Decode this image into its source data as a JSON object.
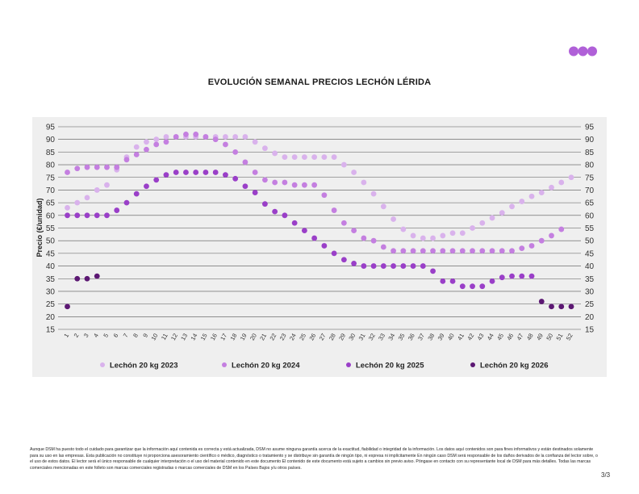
{
  "header": {
    "logo_colors": [
      "#b060d8",
      "#b060d8",
      "#b060d8"
    ]
  },
  "chart_data": {
    "type": "scatter",
    "title": "EVOLUCIÓN SEMANAL PRECIOS LECHÓN LÉRIDA",
    "xlabel": "",
    "ylabel": "Precio (€/unidad)",
    "ylim": [
      15,
      95
    ],
    "yticks": [
      15,
      20,
      25,
      30,
      35,
      40,
      45,
      50,
      55,
      60,
      65,
      70,
      75,
      80,
      85,
      90,
      95
    ],
    "x": [
      1,
      2,
      3,
      4,
      5,
      6,
      7,
      8,
      9,
      10,
      11,
      12,
      13,
      14,
      15,
      16,
      17,
      18,
      19,
      20,
      21,
      22,
      23,
      24,
      25,
      26,
      27,
      28,
      29,
      30,
      31,
      32,
      33,
      34,
      35,
      36,
      37,
      38,
      39,
      40,
      41,
      42,
      43,
      44,
      45,
      46,
      47,
      48,
      49,
      50,
      51,
      52
    ],
    "grid": true,
    "legend_position": "bottom",
    "series": [
      {
        "name": "Lechón 20 kg 2023",
        "color": "#d9b2ec",
        "values": [
          63,
          65,
          67,
          70,
          72,
          78,
          83,
          87,
          89,
          90,
          91,
          91,
          91,
          91,
          91,
          91,
          91,
          91,
          91,
          89,
          86.5,
          84.5,
          83,
          83,
          83,
          83,
          83,
          83,
          80,
          77,
          73,
          68.5,
          63.5,
          58.5,
          54.5,
          52,
          51,
          51,
          52,
          53,
          53,
          55,
          57,
          59,
          61,
          63.5,
          65.5,
          67.5,
          69,
          71,
          73,
          75
        ]
      },
      {
        "name": "Lechón 20 kg 2024",
        "color": "#c47fe0",
        "values": [
          77,
          78.5,
          79,
          79,
          79,
          79,
          82,
          84,
          86,
          88,
          89,
          91,
          92,
          92,
          91,
          90,
          88,
          85,
          81,
          77,
          74,
          73,
          73,
          72,
          72,
          72,
          68,
          62,
          57,
          54,
          51,
          50,
          47.5,
          46,
          46,
          46,
          46,
          46,
          46,
          46,
          46,
          46,
          46,
          46,
          46,
          46,
          47,
          48,
          50,
          52,
          54.5,
          null
        ]
      },
      {
        "name": "Lechón 20 kg 2025",
        "color": "#9a3fc8",
        "values": [
          60,
          60,
          60,
          60,
          60,
          62,
          65,
          68.5,
          71.5,
          74,
          76,
          77,
          77,
          77,
          77,
          77,
          76,
          74.5,
          71.5,
          69,
          64.5,
          61.5,
          60,
          57,
          54,
          51,
          48,
          45,
          42.5,
          41,
          40,
          40,
          40,
          40,
          40,
          40,
          40,
          38,
          34,
          34,
          32,
          32,
          32,
          34,
          35.5,
          36,
          36,
          36,
          null,
          null,
          null,
          null
        ]
      },
      {
        "name": "Lechón 20 kg 2026",
        "color": "#5c1873",
        "values": [
          24,
          35,
          35,
          36,
          null,
          null,
          null,
          null,
          null,
          null,
          null,
          null,
          null,
          null,
          null,
          null,
          null,
          null,
          null,
          null,
          null,
          null,
          null,
          null,
          null,
          null,
          null,
          null,
          null,
          null,
          null,
          null,
          null,
          null,
          null,
          null,
          null,
          null,
          null,
          null,
          null,
          null,
          null,
          null,
          null,
          null,
          null,
          null,
          26,
          24,
          24,
          24
        ]
      }
    ]
  },
  "footer": {
    "disclaimer": "Aunque DSM ha puesto todo el cuidado para garantizar que la información aquí contenida es correcta y está actualizada, DSM no asume ninguna garantía acerca de la exactitud, fiabilidad o integridad de la información. Los datos aquí contenidos son para fines informativos y están destinados solamente para su uso en las empresas. Esta publicación no constituye ni proporciona asesoramiento científico o médico, diagnóstico o tratamiento y se distribuye sin garantía de ningún tipo, ni expresa ni implícitamente En ningún caso DSM será responsable de los daños derivados de la confianza del lector sobre, o el uso de estos datos. El lector será el único responsable de cualquier interpretación o el uso del material contenido en este documento El contenido de este documento está sujeto a cambios sin previo aviso. Póngase en contacto con su representante local de DSM para más detalles. Todas las marcas comerciales mencionadas en este folleto son marcas comerciales registradas o marcas comerciales de DSM en los Países Bajos y/u otros países.",
    "page_number": "3/3"
  }
}
